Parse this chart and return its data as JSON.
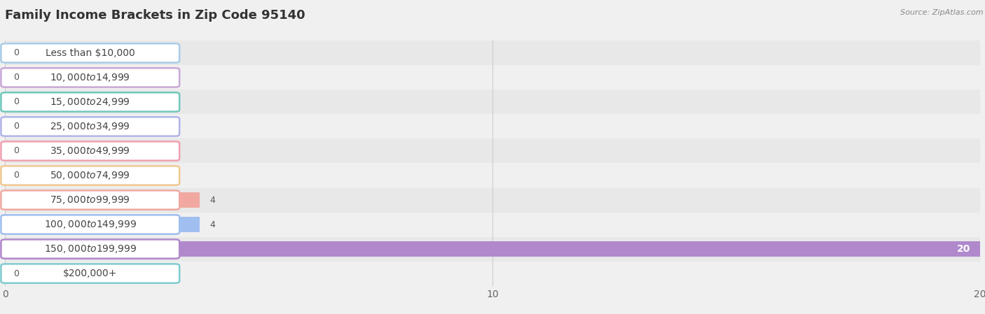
{
  "title": "Family Income Brackets in Zip Code 95140",
  "source": "Source: ZipAtlas.com",
  "categories": [
    "Less than $10,000",
    "$10,000 to $14,999",
    "$15,000 to $24,999",
    "$25,000 to $34,999",
    "$35,000 to $49,999",
    "$50,000 to $74,999",
    "$75,000 to $99,999",
    "$100,000 to $149,999",
    "$150,000 to $199,999",
    "$200,000+"
  ],
  "values": [
    0,
    0,
    0,
    0,
    0,
    0,
    4,
    4,
    20,
    0
  ],
  "bar_colors": [
    "#a8cce8",
    "#c8a8d8",
    "#70c8bc",
    "#b0b4e8",
    "#f0a0b0",
    "#f0c890",
    "#f0a8a0",
    "#a0bef0",
    "#b088cc",
    "#80ccd0"
  ],
  "bg_color": "#f0f0f0",
  "row_bg_even": "#e8e8e8",
  "row_bg_odd": "#f0f0f0",
  "xlim": [
    0,
    20
  ],
  "xticks": [
    0,
    10,
    20
  ],
  "title_fontsize": 13,
  "label_fontsize": 10,
  "value_fontsize": 9,
  "source_fontsize": 8
}
